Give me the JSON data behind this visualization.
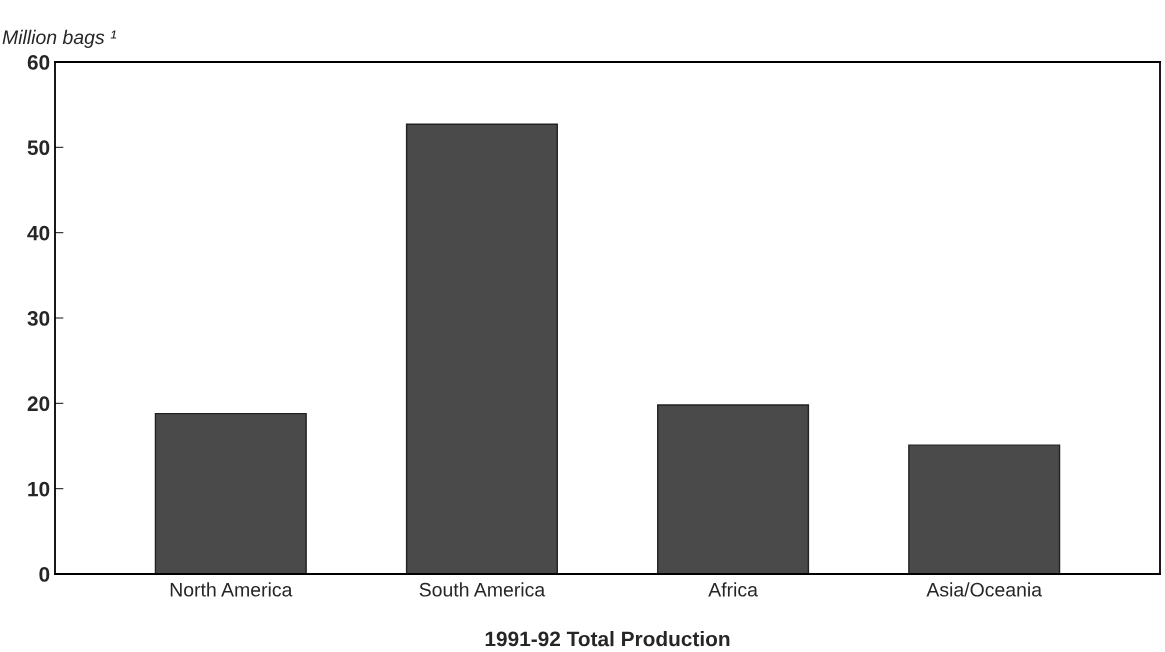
{
  "chart_data": {
    "type": "bar",
    "xlabel": "1991-92 Total Production",
    "ylabel": "Million bags ¹",
    "categories": [
      "North America",
      "South America",
      "Africa",
      "Asia/Oceania"
    ],
    "values": [
      18.8,
      52.7,
      19.8,
      15.1
    ],
    "color": "#4a4a4a",
    "ylim": [
      0,
      60
    ],
    "yticks": [
      0,
      10,
      20,
      30,
      40,
      50,
      60
    ],
    "grid": false
  }
}
